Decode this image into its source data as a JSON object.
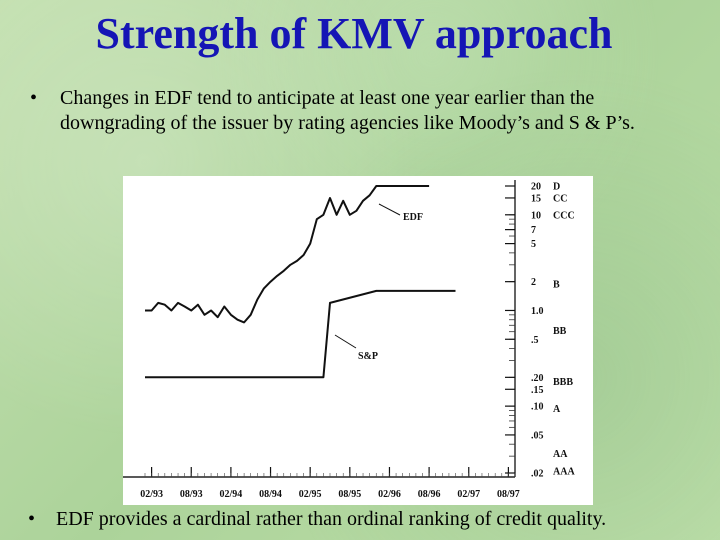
{
  "slide": {
    "title": "Strength of KMV approach",
    "bullets": [
      "Changes in EDF tend to anticipate at least one year earlier than the downgrading of the issuer by rating agencies like Moody’s and S & P’s.",
      "EDF provides a cardinal rather than ordinal ranking of credit quality."
    ],
    "bullet_symbol": "•",
    "colors": {
      "title": "#1515b5",
      "background": "#b9d9a6",
      "chart_bg": "#ffffff"
    }
  },
  "chart_data": {
    "type": "line",
    "title": "",
    "xlabel": "",
    "ylabel": "",
    "y_scale": "log",
    "ylim": [
      0.02,
      20
    ],
    "x_tick_labels": [
      "02/93",
      "08/93",
      "02/94",
      "08/94",
      "02/95",
      "08/95",
      "02/96",
      "08/96",
      "02/97",
      "08/97"
    ],
    "y_tick_labels": [
      "20",
      "15",
      "10",
      "7",
      "5",
      "2",
      "1.0",
      ".5",
      ".20",
      ".15",
      ".10",
      ".05",
      ".02"
    ],
    "y_tick_values": [
      20,
      15,
      10,
      7,
      5,
      2,
      1.0,
      0.5,
      0.2,
      0.15,
      0.1,
      0.05,
      0.02
    ],
    "rating_labels": [
      {
        "label": "D",
        "value": 20
      },
      {
        "label": "CC",
        "value": 15
      },
      {
        "label": "CCC",
        "value": 10
      },
      {
        "label": "B",
        "value": 1.9
      },
      {
        "label": "BB",
        "value": 0.62
      },
      {
        "label": "BBB",
        "value": 0.18
      },
      {
        "label": "A",
        "value": 0.095
      },
      {
        "label": "AA",
        "value": 0.032
      },
      {
        "label": "AAA",
        "value": 0.021
      }
    ],
    "annotations": [
      "EDF",
      "S&P"
    ],
    "series": [
      {
        "name": "EDF",
        "x": [
          "1993-01",
          "1993-02",
          "1993-03",
          "1993-04",
          "1993-05",
          "1993-06",
          "1993-07",
          "1993-08",
          "1993-09",
          "1993-10",
          "1993-11",
          "1993-12",
          "1994-01",
          "1994-02",
          "1994-03",
          "1994-04",
          "1994-05",
          "1994-06",
          "1994-07",
          "1994-08",
          "1994-09",
          "1994-10",
          "1994-11",
          "1994-12",
          "1995-01",
          "1995-02",
          "1995-03",
          "1995-04",
          "1995-05",
          "1995-06",
          "1995-07",
          "1995-08",
          "1995-09",
          "1995-10",
          "1995-11",
          "1995-12",
          "1996-01",
          "1996-02",
          "1996-03",
          "1996-04",
          "1996-05",
          "1996-06",
          "1996-07",
          "1996-08"
        ],
        "values": [
          1.0,
          1.0,
          1.2,
          1.15,
          1.0,
          1.2,
          1.1,
          1.0,
          1.15,
          0.9,
          1.0,
          0.85,
          1.1,
          0.9,
          0.8,
          0.75,
          0.9,
          1.3,
          1.7,
          2.0,
          2.3,
          2.6,
          3.0,
          3.3,
          3.8,
          5.0,
          9.0,
          10.0,
          15.0,
          10.0,
          14.0,
          10.0,
          11.0,
          14.0,
          16.0,
          20.0,
          20.0,
          20.0,
          20.0,
          20.0,
          20.0,
          20.0,
          20.0,
          20.0
        ]
      },
      {
        "name": "S&P",
        "x": [
          "1993-01",
          "1993-12",
          "1994-12",
          "1995-04",
          "1995-05",
          "1995-12",
          "1996-12"
        ],
        "values": [
          0.2,
          0.2,
          0.2,
          0.2,
          1.2,
          1.6,
          1.6
        ]
      }
    ],
    "grid": false
  }
}
